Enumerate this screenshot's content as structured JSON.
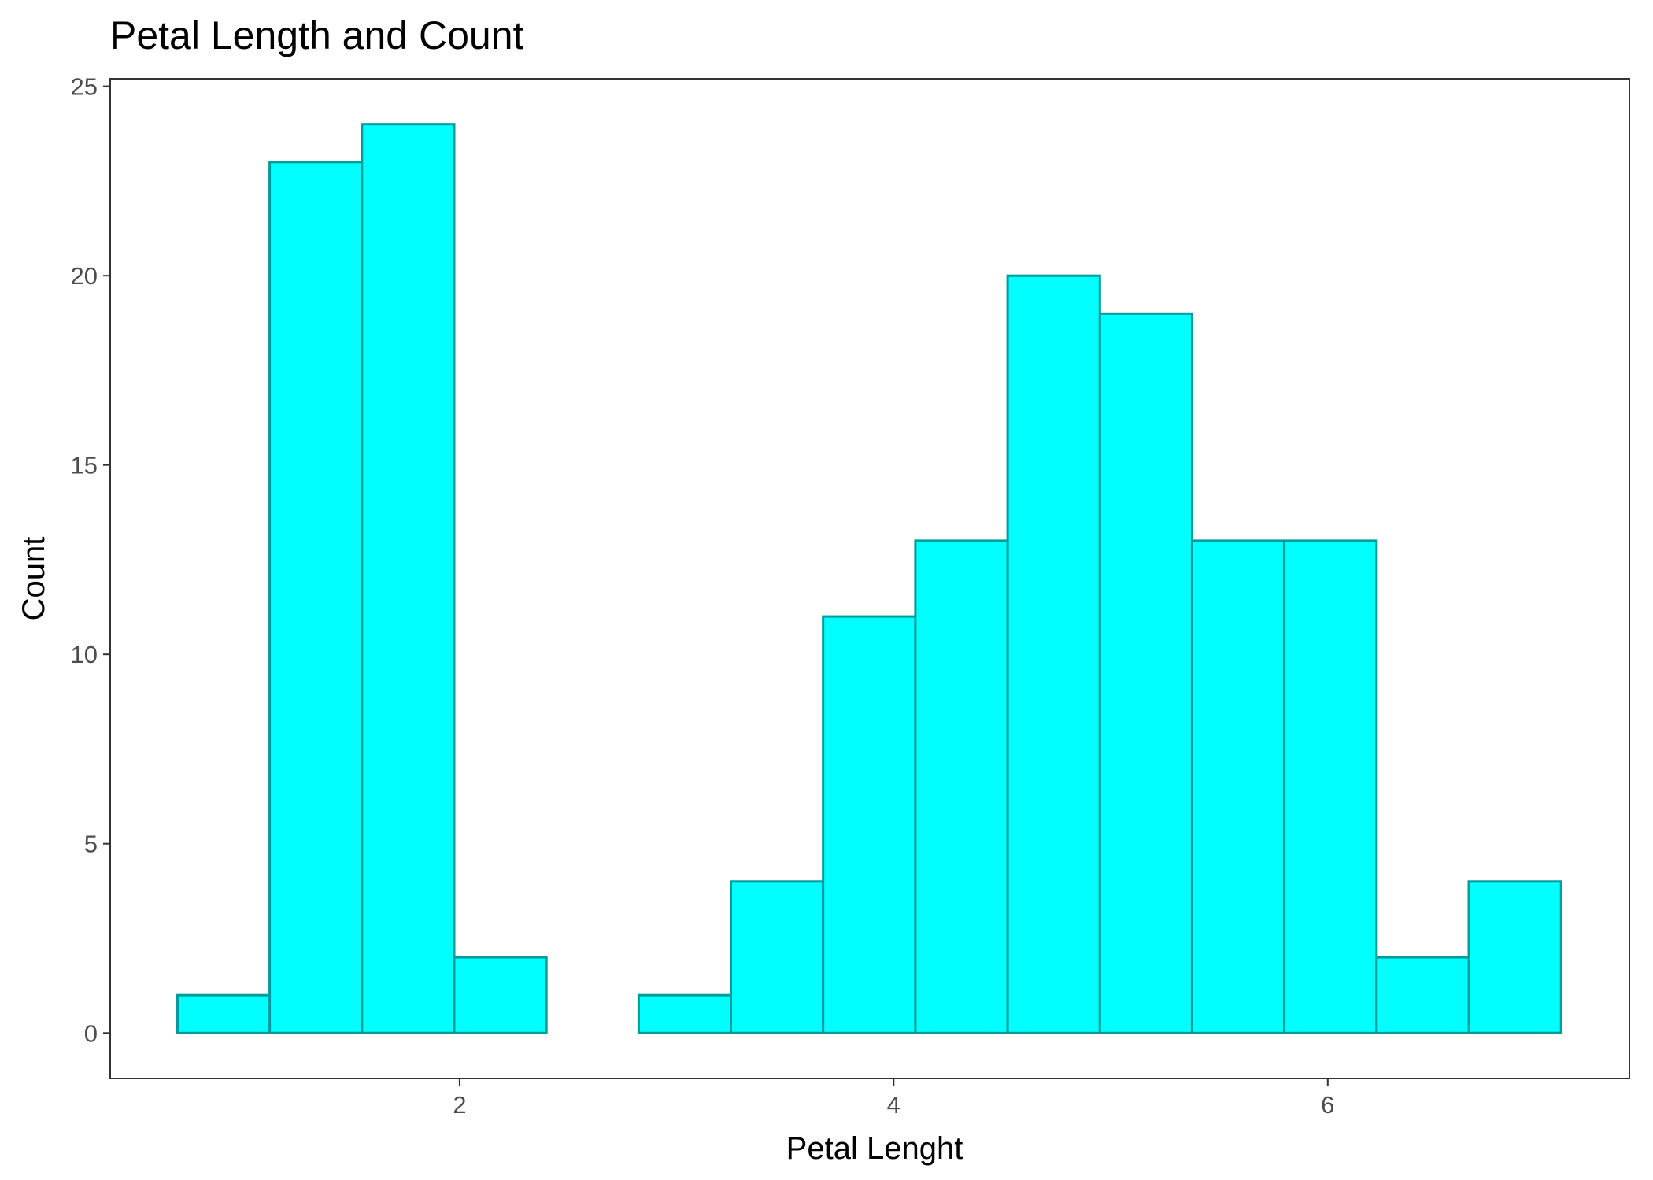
{
  "chart_data": {
    "type": "bar",
    "title": "Petal Length and Count",
    "xlabel": "Petal Lenght",
    "ylabel": "Count",
    "bin_edges": [
      0.7,
      1.125,
      1.55,
      1.975,
      2.4,
      2.825,
      3.25,
      3.675,
      4.1,
      4.525,
      4.95,
      5.375,
      5.8,
      6.225,
      6.65,
      7.075
    ],
    "values": [
      1,
      23,
      24,
      2,
      0,
      1,
      4,
      11,
      13,
      20,
      19,
      13,
      13,
      2,
      4
    ],
    "xlim": [
      0.39,
      7.39
    ],
    "ylim": [
      -1.2,
      25.2
    ],
    "x_ticks": [
      2,
      4,
      6
    ],
    "x_tick_labels": [
      "2",
      "4",
      "6"
    ],
    "y_ticks": [
      0,
      5,
      10,
      15,
      20,
      25
    ],
    "y_tick_labels": [
      "0",
      "5",
      "10",
      "15",
      "20",
      "25"
    ],
    "bar_fill": "#00ffff",
    "bar_stroke": "#009b9b",
    "grid": false,
    "legend": "none"
  }
}
